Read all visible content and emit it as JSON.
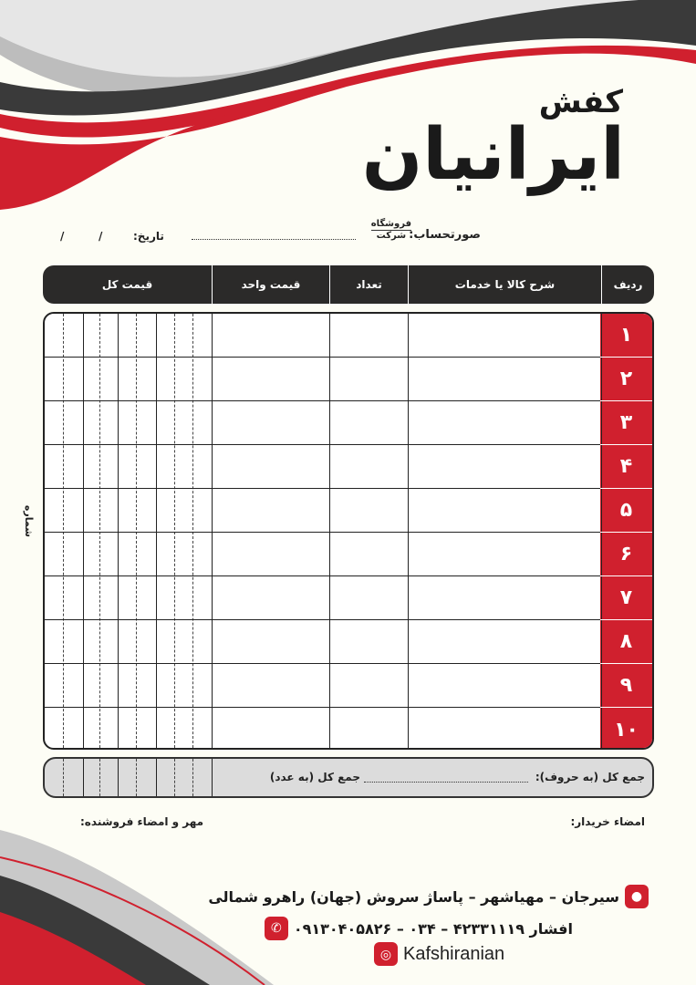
{
  "brand": {
    "line1": "کفش",
    "line2": "ایرانیان"
  },
  "invoice": {
    "label": "صورتحساب:",
    "seller_top": "فروشگاه",
    "seller_bottom": "شرکت",
    "date_label": "تاریخ:",
    "date_sep": "/"
  },
  "table": {
    "headers": [
      "ردیف",
      "شرح کالا یا خدمات",
      "تعداد",
      "قیمت واحد",
      "قیمت کل"
    ],
    "rows": [
      "۱",
      "۲",
      "۳",
      "۴",
      "۵",
      "۶",
      "۷",
      "۸",
      "۹",
      "۱۰"
    ]
  },
  "side_label": "شماره",
  "totals": {
    "in_words": "جمع کل (به حروف):",
    "in_numbers": "جمع کل (به عدد)"
  },
  "signatures": {
    "buyer": "امضاء خریدار:",
    "seller": "مهر و امضاء فروشنده:"
  },
  "footer": {
    "address": "سیرجان – مهیاشهر – پاساژ سروش (جهان) راهرو شمالی",
    "phone": "افشار ۴۲۳۳۱۱۱۹ – ۰۳۴ – ۰۹۱۳۰۴۰۵۸۲۶",
    "instagram": "Kafshiranian"
  },
  "colors": {
    "accent": "#d0202e",
    "dark": "#2b2a29",
    "background": "#fdfdf5"
  }
}
